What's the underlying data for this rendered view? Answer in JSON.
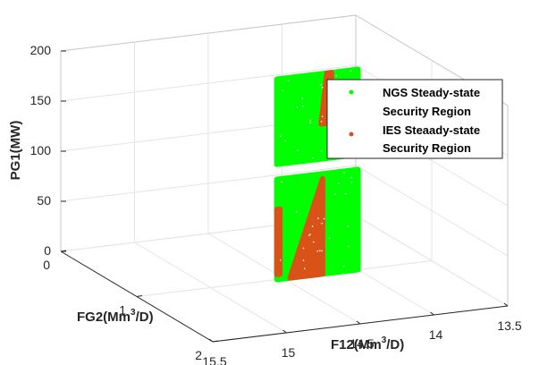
{
  "chart_data": {
    "type": "scatter",
    "projection": "3d",
    "x_axis": {
      "label": "FG2(Mm",
      "label_sup": "3",
      "label_end": "/D)",
      "ticks": [
        0,
        1,
        2
      ],
      "tick_labels": [
        "0",
        "1",
        "2"
      ],
      "lim": [
        0,
        2
      ]
    },
    "y_axis": {
      "label": "F12(Mm",
      "label_sup": "3",
      "label_end": "/D)",
      "ticks": [
        13.5,
        14,
        14.5,
        15,
        15.5
      ],
      "tick_labels": [
        "13.5",
        "14",
        "14.5",
        "15",
        "15.5"
      ],
      "lim": [
        13.5,
        15.5
      ]
    },
    "z_axis": {
      "label": "PG1(MW)",
      "ticks": [
        0,
        50,
        100,
        150,
        200
      ],
      "tick_labels": [
        "0",
        "50",
        "100",
        "150",
        "200"
      ],
      "lim": [
        0,
        200
      ]
    },
    "grid": true,
    "legend": {
      "placement": "right",
      "entries": [
        {
          "line1": "NGS Steady-state",
          "line2": "Security Region",
          "color": "#00ff00"
        },
        {
          "line1": "IES Steaady-state",
          "line2": "Security Region",
          "color": "#d95319"
        }
      ]
    },
    "series": [
      {
        "name": "NGS Steady-state Security Region",
        "color": "#00ff00",
        "regions": [
          {
            "fg2": 1.0,
            "f12": [
              14.55,
              14.0
            ],
            "pg1": [
              0,
              100
            ]
          },
          {
            "fg2": 1.0,
            "f12": [
              14.55,
              14.0
            ],
            "pg1": [
              115,
              200
            ]
          }
        ]
      },
      {
        "name": "IES Steaady-state Security Region",
        "color": "#d95319",
        "regions": [
          {
            "fg2": 1.0,
            "points": [
              [
                14.46,
                0
              ],
              [
                14.24,
                0
              ],
              [
                14.24,
                95
              ]
            ]
          },
          {
            "fg2": 1.0,
            "points": [
              [
                14.55,
                5
              ],
              [
                14.53,
                5
              ],
              [
                14.53,
                70
              ],
              [
                14.55,
                70
              ]
            ]
          },
          {
            "fg2": 1.0,
            "points": [
              [
                14.25,
                150
              ],
              [
                14.18,
                150
              ],
              [
                14.18,
                200
              ],
              [
                14.21,
                200
              ]
            ]
          }
        ]
      }
    ]
  }
}
